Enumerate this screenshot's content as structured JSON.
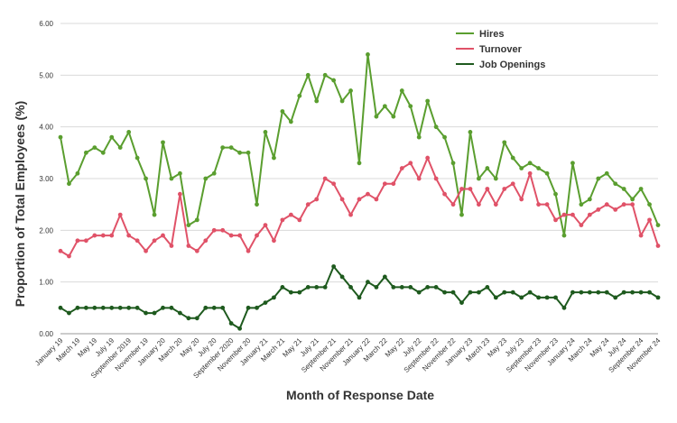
{
  "chart_data": {
    "type": "line",
    "xlabel": "Month of Response Date",
    "ylabel": "Proportion of Total Employees (%)",
    "ylim": [
      0,
      6
    ],
    "yticks": [
      "0.00",
      "1.00",
      "2.00",
      "3.00",
      "4.00",
      "5.00",
      "6.00"
    ],
    "grid": "horizontal",
    "legend_position": "top-right",
    "categories": [
      "January 19",
      "February 19",
      "March 19",
      "April 19",
      "May 19",
      "June 19",
      "July 19",
      "August 19",
      "September 2019",
      "October 19",
      "November 19",
      "December 19",
      "January 20",
      "February 20",
      "March 20",
      "April 20",
      "May 20",
      "June 20",
      "July 20",
      "August 20",
      "September 2020",
      "October 20",
      "November 20",
      "December 20",
      "January 21",
      "February 21",
      "March 21",
      "April 21",
      "May 21",
      "June 21",
      "July 21",
      "August 21",
      "September 21",
      "October 21",
      "November 21",
      "December 21",
      "January 22",
      "February 22",
      "March 22",
      "April 22",
      "May 22",
      "June 22",
      "July 22",
      "August 22",
      "September 22",
      "October 22",
      "November 22",
      "December 22",
      "January 23",
      "February 23",
      "March 23",
      "April 23",
      "May 23",
      "June 23",
      "July 23",
      "August 23",
      "September 23",
      "October 23",
      "November 23",
      "December 23",
      "January 24",
      "February 24",
      "March 24",
      "April 24",
      "May 24",
      "June 24",
      "July 24",
      "August 24",
      "September 24",
      "October 24",
      "November 24"
    ],
    "tick_labels": [
      "January 19",
      "March 19",
      "May 19",
      "July 19",
      "September 2019",
      "November 19",
      "January 20",
      "March 20",
      "May 20",
      "July 20",
      "September 2020",
      "November 20",
      "January 21",
      "March 21",
      "May 21",
      "July 21",
      "September 21",
      "November 21",
      "January 22",
      "March 22",
      "May 22",
      "July 22",
      "September 22",
      "November 22",
      "January 23",
      "March 23",
      "May 23",
      "July 23",
      "September 23",
      "November 23",
      "January 24",
      "March 24",
      "May 24",
      "July 24",
      "September 24",
      "November 24"
    ],
    "series": [
      {
        "name": "Hires",
        "color": "#5a9e2f",
        "values": [
          3.8,
          2.9,
          3.1,
          3.5,
          3.6,
          3.5,
          3.8,
          3.6,
          3.9,
          3.4,
          3.0,
          2.3,
          3.7,
          3.0,
          3.1,
          2.1,
          2.2,
          3.0,
          3.1,
          3.6,
          3.6,
          3.5,
          3.5,
          2.5,
          3.9,
          3.4,
          4.3,
          4.1,
          4.6,
          5.0,
          4.5,
          5.0,
          4.9,
          4.5,
          4.7,
          3.3,
          5.4,
          4.2,
          4.4,
          4.2,
          4.7,
          4.4,
          3.8,
          4.5,
          4.0,
          3.8,
          3.3,
          2.3,
          3.9,
          3.0,
          3.2,
          3.0,
          3.7,
          3.4,
          3.2,
          3.3,
          3.2,
          3.1,
          2.7,
          1.9,
          3.3,
          2.5,
          2.6,
          3.0,
          3.1,
          2.9,
          2.8,
          2.6,
          2.8,
          2.5,
          2.1
        ]
      },
      {
        "name": "Turnover",
        "color": "#e05268",
        "values": [
          1.6,
          1.5,
          1.8,
          1.8,
          1.9,
          1.9,
          1.9,
          2.3,
          1.9,
          1.8,
          1.6,
          1.8,
          1.9,
          1.7,
          2.7,
          1.7,
          1.6,
          1.8,
          2.0,
          2.0,
          1.9,
          1.9,
          1.6,
          1.9,
          2.1,
          1.8,
          2.2,
          2.3,
          2.2,
          2.5,
          2.6,
          3.0,
          2.9,
          2.6,
          2.3,
          2.6,
          2.7,
          2.6,
          2.9,
          2.9,
          3.2,
          3.3,
          3.0,
          3.4,
          3.0,
          2.7,
          2.5,
          2.8,
          2.8,
          2.5,
          2.8,
          2.5,
          2.8,
          2.9,
          2.6,
          3.1,
          2.5,
          2.5,
          2.2,
          2.3,
          2.3,
          2.1,
          2.3,
          2.4,
          2.5,
          2.4,
          2.5,
          2.5,
          1.9,
          2.2,
          1.7
        ]
      },
      {
        "name": "Job Openings",
        "color": "#1e5a1e",
        "values": [
          0.5,
          0.4,
          0.5,
          0.5,
          0.5,
          0.5,
          0.5,
          0.5,
          0.5,
          0.5,
          0.4,
          0.4,
          0.5,
          0.5,
          0.4,
          0.3,
          0.3,
          0.5,
          0.5,
          0.5,
          0.2,
          0.1,
          0.5,
          0.5,
          0.6,
          0.7,
          0.9,
          0.8,
          0.8,
          0.9,
          0.9,
          0.9,
          1.3,
          1.1,
          0.9,
          0.7,
          1.0,
          0.9,
          1.1,
          0.9,
          0.9,
          0.9,
          0.8,
          0.9,
          0.9,
          0.8,
          0.8,
          0.6,
          0.8,
          0.8,
          0.9,
          0.7,
          0.8,
          0.8,
          0.7,
          0.8,
          0.7,
          0.7,
          0.7,
          0.5,
          0.8,
          0.8,
          0.8,
          0.8,
          0.8,
          0.7,
          0.8,
          0.8,
          0.8,
          0.8,
          0.7
        ]
      }
    ]
  }
}
